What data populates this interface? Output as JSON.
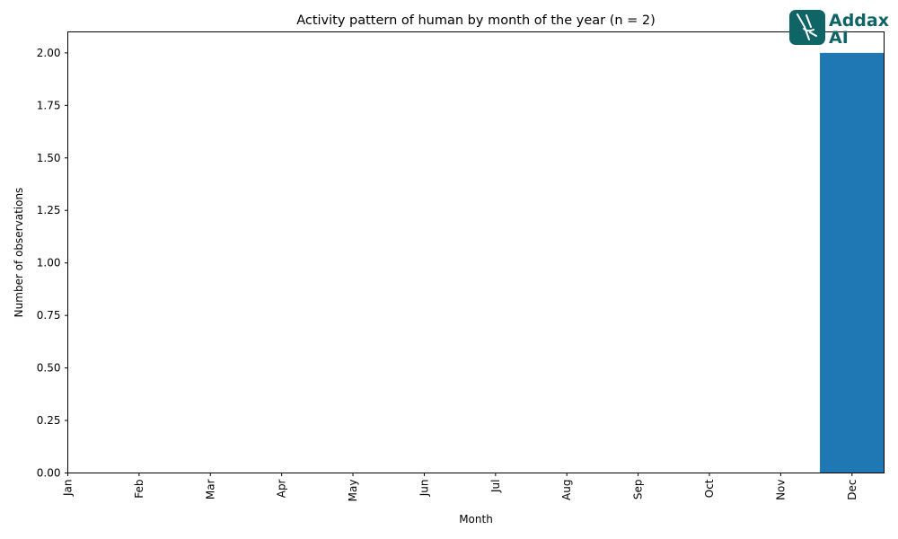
{
  "chart_data": {
    "type": "bar",
    "title": "Activity pattern of human by month of the year (n = 2)",
    "xlabel": "Month",
    "ylabel": "Number of observations",
    "categories": [
      "Jan",
      "Feb",
      "Mar",
      "Apr",
      "May",
      "Jun",
      "Jul",
      "Aug",
      "Sep",
      "Oct",
      "Nov",
      "Dec"
    ],
    "values": [
      0,
      0,
      0,
      0,
      0,
      0,
      0,
      0,
      0,
      0,
      0,
      2
    ],
    "ylim": [
      0,
      2.1
    ],
    "yticks": [
      "0.00",
      "0.25",
      "0.50",
      "0.75",
      "1.00",
      "1.25",
      "1.50",
      "1.75",
      "2.00"
    ],
    "grid": false,
    "bar_color": "#1f77b4"
  },
  "logo": {
    "line1": "Addax",
    "line2": "AI",
    "color": "#0f6466"
  }
}
